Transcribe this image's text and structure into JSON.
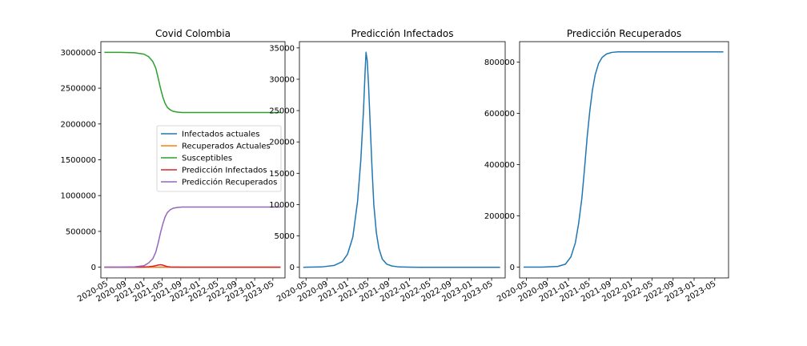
{
  "chart_data": [
    {
      "type": "line",
      "title": "Covid Colombia",
      "xlabel": "",
      "ylabel": "",
      "x_ticks": [
        "2020-05",
        "2020-09",
        "2021-01",
        "2021-05",
        "2021-09",
        "2022-01",
        "2022-05",
        "2022-09",
        "2023-01",
        "2023-05"
      ],
      "xlim": [
        "2020-03-23",
        "2023-07-20"
      ],
      "y_ticks": [
        0,
        500000,
        1000000,
        1500000,
        2000000,
        2500000,
        3000000
      ],
      "ylim": [
        -150000,
        3150000
      ],
      "legend_position": "center-right",
      "x": [
        "2020-04-15",
        "2020-08-01",
        "2020-11-01",
        "2021-01-01",
        "2021-02-01",
        "2021-03-01",
        "2021-03-20",
        "2021-04-05",
        "2021-04-20",
        "2021-05-05",
        "2021-05-20",
        "2021-06-05",
        "2021-06-25",
        "2021-07-15",
        "2021-08-10",
        "2021-09-10",
        "2021-10-15",
        "2022-01-01",
        "2022-09-01",
        "2023-06-20"
      ],
      "series": [
        {
          "name": "Infectados actuales",
          "color": "#1f77b4",
          "values": [
            0,
            0,
            0,
            0,
            0,
            0,
            0,
            0,
            0,
            0,
            0,
            0,
            0,
            0,
            0,
            0,
            0,
            0,
            0,
            0
          ]
        },
        {
          "name": "Recuperados Actuales",
          "color": "#ff7f0e",
          "values": [
            0,
            0,
            0,
            0,
            0,
            0,
            0,
            0,
            0,
            0,
            0,
            0,
            0,
            0,
            0,
            0,
            0,
            0,
            0,
            0
          ]
        },
        {
          "name": "Susceptibles",
          "color": "#2ca02c",
          "values": [
            3000000,
            3000000,
            2995000,
            2975000,
            2940000,
            2870000,
            2780000,
            2640000,
            2500000,
            2380000,
            2290000,
            2230000,
            2195000,
            2175000,
            2165000,
            2160000,
            2160000,
            2160000,
            2160000,
            2160000
          ]
        },
        {
          "name": "Predicción Infectados",
          "color": "#d62728",
          "values": [
            0,
            0,
            400,
            2000,
            6000,
            14000,
            22000,
            30000,
            34300,
            29000,
            18000,
            8000,
            3000,
            1000,
            300,
            100,
            0,
            0,
            0,
            0
          ]
        },
        {
          "name": "Predicción Recuperados",
          "color": "#9467bd",
          "values": [
            0,
            0,
            5000,
            20000,
            60000,
            120000,
            210000,
            340000,
            480000,
            600000,
            700000,
            765000,
            805000,
            825000,
            835000,
            840000,
            840000,
            840000,
            840000,
            840000
          ]
        }
      ]
    },
    {
      "type": "line",
      "title": "Predicción Infectados",
      "xlabel": "",
      "ylabel": "",
      "x_ticks": [
        "2020-05",
        "2020-09",
        "2021-01",
        "2021-05",
        "2021-09",
        "2022-01",
        "2022-05",
        "2022-09",
        "2023-01",
        "2023-05"
      ],
      "xlim": [
        "2020-03-23",
        "2023-07-20"
      ],
      "y_ticks": [
        0,
        5000,
        10000,
        15000,
        20000,
        25000,
        30000,
        35000
      ],
      "ylim": [
        -1700,
        36000
      ],
      "x": [
        "2020-04-15",
        "2020-08-01",
        "2020-10-15",
        "2020-12-01",
        "2021-01-01",
        "2021-02-01",
        "2021-03-01",
        "2021-03-20",
        "2021-04-05",
        "2021-04-15",
        "2021-04-20",
        "2021-04-27",
        "2021-05-05",
        "2021-05-15",
        "2021-05-25",
        "2021-06-05",
        "2021-06-20",
        "2021-07-05",
        "2021-07-25",
        "2021-08-20",
        "2021-09-20",
        "2021-11-01",
        "2022-03-01",
        "2023-06-20"
      ],
      "series": [
        {
          "name": "",
          "color": "#1f77b4",
          "values": [
            0,
            50,
            300,
            900,
            2100,
            4800,
            10500,
            17000,
            25000,
            31500,
            34300,
            33000,
            29000,
            22500,
            16000,
            10000,
            5500,
            3000,
            1300,
            500,
            200,
            50,
            0,
            0
          ]
        }
      ]
    },
    {
      "type": "line",
      "title": "Predicción Recuperados",
      "xlabel": "",
      "ylabel": "",
      "x_ticks": [
        "2020-05",
        "2020-09",
        "2021-01",
        "2021-05",
        "2021-09",
        "2022-01",
        "2022-05",
        "2022-09",
        "2023-01",
        "2023-05"
      ],
      "xlim": [
        "2020-03-23",
        "2023-07-20"
      ],
      "y_ticks": [
        0,
        200000,
        400000,
        600000,
        800000
      ],
      "ylim": [
        -42000,
        880000
      ],
      "x": [
        "2020-04-15",
        "2020-08-01",
        "2020-11-01",
        "2020-12-15",
        "2021-01-15",
        "2021-02-10",
        "2021-03-01",
        "2021-03-20",
        "2021-04-05",
        "2021-04-20",
        "2021-05-05",
        "2021-05-20",
        "2021-06-05",
        "2021-06-25",
        "2021-07-15",
        "2021-08-10",
        "2021-09-10",
        "2021-10-15",
        "2022-01-01",
        "2022-09-01",
        "2023-06-20"
      ],
      "series": [
        {
          "name": "",
          "color": "#1f77b4",
          "values": [
            0,
            0,
            3000,
            12000,
            40000,
            95000,
            170000,
            270000,
            390000,
            510000,
            610000,
            690000,
            750000,
            795000,
            818000,
            832000,
            838000,
            840000,
            840000,
            840000,
            840000
          ]
        }
      ]
    }
  ]
}
